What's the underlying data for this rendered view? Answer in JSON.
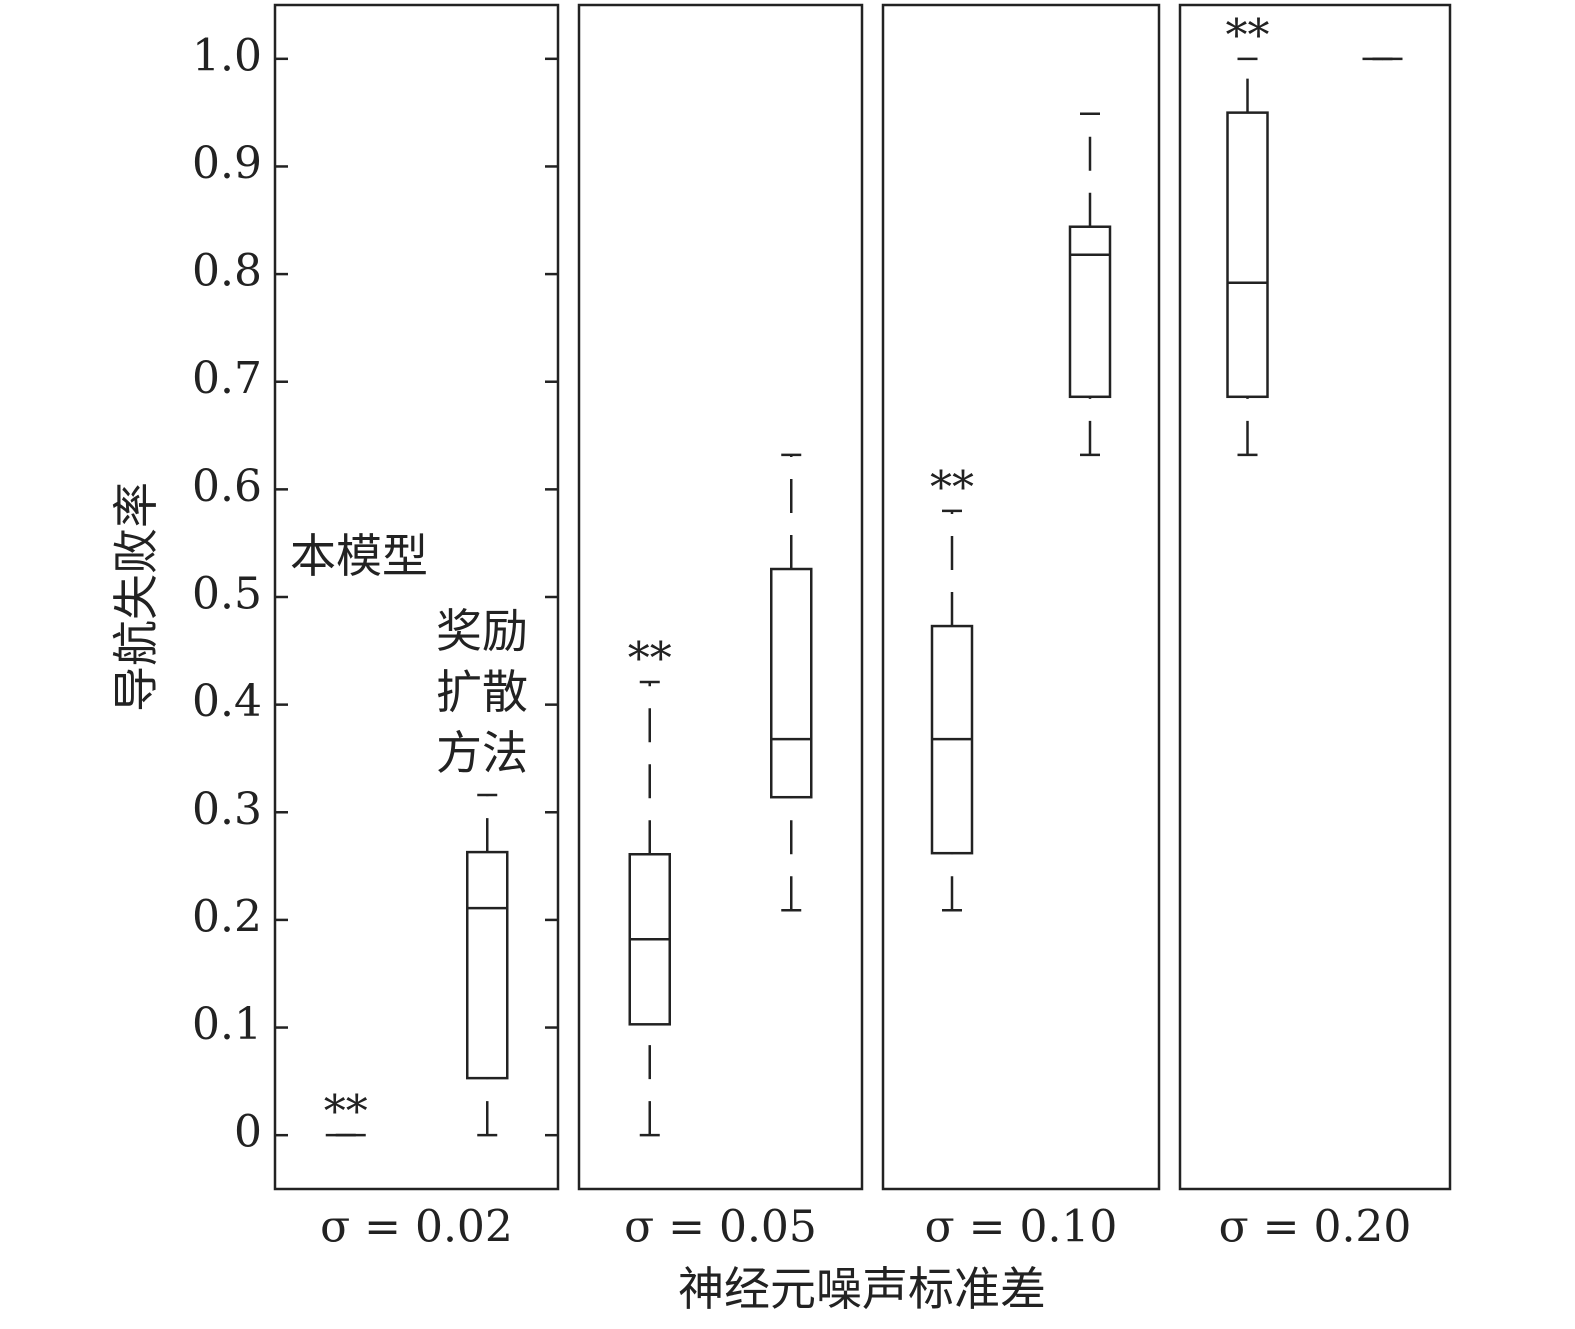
{
  "chart_data": {
    "type": "box",
    "ylabel": "导航失败率",
    "xlabel": "神经元噪声标准差",
    "series_names": [
      "本模型",
      "奖励扩散方法"
    ],
    "ylim": [
      -0.05,
      1.05
    ],
    "yticks": [
      0,
      0.1,
      0.2,
      0.3,
      0.4,
      0.5,
      0.6,
      0.7,
      0.8,
      0.9,
      {
        "value": 1,
        "label": "1.0"
      }
    ],
    "panels": [
      {
        "label": "σ = 0.02",
        "boxes": [
          {
            "min": 0,
            "q1": 0,
            "median": 0,
            "q3": 0,
            "max": 0,
            "annotation": "**"
          },
          {
            "min": 0,
            "q1": 0.053,
            "median": 0.211,
            "q3": 0.263,
            "max": 0.316
          }
        ]
      },
      {
        "label": "σ = 0.05",
        "boxes": [
          {
            "min": 0,
            "q1": 0.103,
            "median": 0.182,
            "q3": 0.261,
            "max": 0.421,
            "annotation": "**"
          },
          {
            "min": 0.209,
            "q1": 0.314,
            "median": 0.368,
            "q3": 0.526,
            "max": 0.632
          }
        ]
      },
      {
        "label": "σ = 0.10",
        "boxes": [
          {
            "min": 0.209,
            "q1": 0.262,
            "median": 0.368,
            "q3": 0.473,
            "max": 0.58,
            "annotation": "**"
          },
          {
            "min": 0.632,
            "q1": 0.686,
            "median": 0.818,
            "q3": 0.844,
            "max": 0.949
          }
        ]
      },
      {
        "label": "σ = 0.20",
        "boxes": [
          {
            "min": 0.632,
            "q1": 0.686,
            "median": 0.792,
            "q3": 0.95,
            "max": 1.0,
            "annotation": "**"
          },
          {
            "min": 1.0,
            "q1": 1.0,
            "median": 1.0,
            "q3": 1.0,
            "max": 1.0
          }
        ]
      }
    ]
  }
}
